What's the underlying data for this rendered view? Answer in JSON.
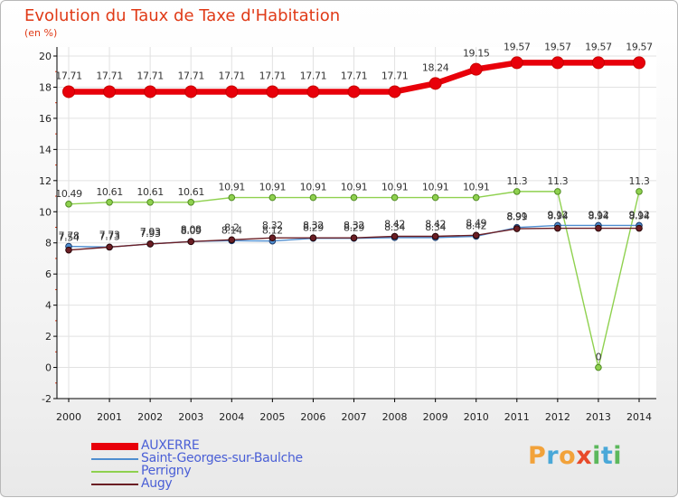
{
  "header": {
    "title": "Evolution du Taux de Taxe d'Habitation",
    "subtitle": "(en %)"
  },
  "brand": {
    "text": "Proxiti",
    "letters": [
      {
        "ch": "P",
        "color": "#f2a23a"
      },
      {
        "ch": "r",
        "color": "#4aa8d8"
      },
      {
        "ch": "o",
        "color": "#f2a23a"
      },
      {
        "ch": "x",
        "color": "#e84a2a"
      },
      {
        "ch": "i",
        "color": "#5cb85c"
      },
      {
        "ch": "t",
        "color": "#4aa8d8"
      },
      {
        "ch": "i",
        "color": "#5cb85c"
      }
    ]
  },
  "chart_data": {
    "type": "line",
    "title": "Evolution du Taux de Taxe d'Habitation",
    "subtitle": "(en %)",
    "x": [
      "2000",
      "2001",
      "2002",
      "2003",
      "2004",
      "2005",
      "2006",
      "2007",
      "2008",
      "2009",
      "2010",
      "2011",
      "2012",
      "2013",
      "2014"
    ],
    "ylim": [
      -2,
      20
    ],
    "yticks": [
      -2,
      0,
      2,
      4,
      6,
      8,
      10,
      12,
      14,
      16,
      18,
      20
    ],
    "grid": true,
    "legend_position": "bottom-left",
    "series": [
      {
        "name": "AUXERRE",
        "color": "#e8000a",
        "values": [
          17.71,
          17.71,
          17.71,
          17.71,
          17.71,
          17.71,
          17.71,
          17.71,
          17.71,
          18.24,
          19.15,
          19.57,
          19.57,
          19.57,
          19.57
        ],
        "labels": [
          "17.71",
          "17.71",
          "17.71",
          "17.71",
          "17.71",
          "17.71",
          "17.71",
          "17.71",
          "17.71",
          "18.24",
          "19.15",
          "19.57",
          "19.57",
          "19.57",
          "19.57"
        ]
      },
      {
        "name": "Saint-Georges-sur-Baulche",
        "color": "#4f8ed0",
        "values": [
          7.78,
          7.73,
          7.93,
          8.09,
          8.14,
          8.12,
          8.29,
          8.29,
          8.34,
          8.34,
          8.42,
          8.99,
          9.12,
          9.12,
          9.12
        ],
        "labels": [
          "7.78",
          "7.73",
          "7.93",
          "8.09",
          "8.14",
          "8.12",
          "8.29",
          "8.29",
          "8.34",
          "8.34",
          "8.42",
          "8.99",
          "9.12",
          "9.12",
          "9.12"
        ]
      },
      {
        "name": "Perrigny",
        "color": "#8fd14f",
        "values": [
          10.49,
          10.61,
          10.61,
          10.61,
          10.91,
          10.91,
          10.91,
          10.91,
          10.91,
          10.91,
          10.91,
          11.3,
          11.3,
          0,
          11.3
        ],
        "labels": [
          "10.49",
          "10.61",
          "10.61",
          "10.61",
          "10.91",
          "10.91",
          "10.91",
          "10.91",
          "10.91",
          "10.91",
          "10.91",
          "11.3",
          "11.3",
          "0",
          "11.3"
        ]
      },
      {
        "name": "Augy",
        "color": "#6b1e24",
        "values": [
          7.54,
          7.73,
          7.93,
          8.08,
          8.2,
          8.32,
          8.32,
          8.32,
          8.42,
          8.42,
          8.49,
          8.91,
          8.94,
          8.94,
          8.94
        ],
        "labels": [
          "7.54",
          "7.73",
          "7.93",
          "8.08",
          "8.2",
          "8.32",
          "8.32",
          "8.32",
          "8.42",
          "8.42",
          "8.49",
          "8.91",
          "8.94",
          "8.94",
          "8.94"
        ]
      }
    ]
  }
}
